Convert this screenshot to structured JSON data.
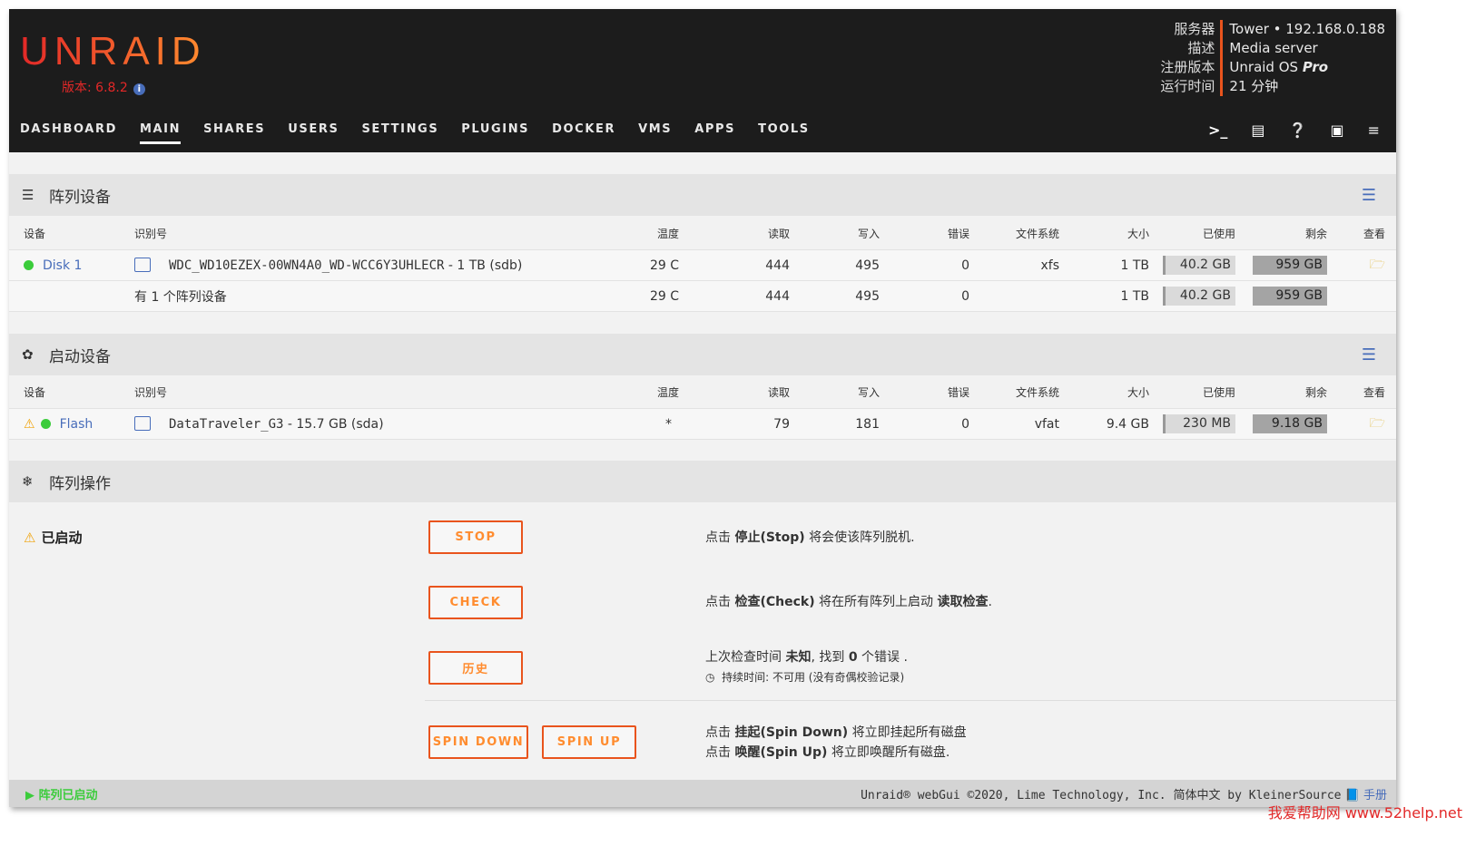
{
  "header": {
    "logo": "UNRAID",
    "version": "版本: 6.8.2",
    "server_info": {
      "labels": [
        "服务器",
        "描述",
        "注册版本",
        "运行时间"
      ],
      "server": "Tower • 192.168.0.188",
      "description": "Media server",
      "registration": "Unraid OS ",
      "registration_em": "Pro",
      "uptime": "21 分钟"
    }
  },
  "nav": {
    "items": [
      "DASHBOARD",
      "MAIN",
      "SHARES",
      "USERS",
      "SETTINGS",
      "PLUGINS",
      "DOCKER",
      "VMS",
      "APPS",
      "TOOLS"
    ],
    "active": "MAIN",
    "icons": [
      "terminal-icon",
      "feedback-icon",
      "help-icon",
      "monitor-icon",
      "log-icon"
    ]
  },
  "columns": [
    "设备",
    "识别号",
    "温度",
    "读取",
    "写入",
    "错误",
    "文件系统",
    "大小",
    "已使用",
    "剩余",
    "查看"
  ],
  "array": {
    "title": "阵列设备",
    "rows": [
      {
        "device": "Disk 1",
        "id": "WDC_WD10EZEX-00WN4A0_WD-WCC6Y3UHLECR",
        "id_suffix": " - 1 TB (sdb)",
        "temp": "29 C",
        "reads": "444",
        "writes": "495",
        "errors": "0",
        "fs": "xfs",
        "size": "1 TB",
        "used": "40.2 GB",
        "free": "959 GB",
        "status": "green"
      }
    ],
    "summary": {
      "label": "有 1 个阵列设备",
      "temp": "29 C",
      "reads": "444",
      "writes": "495",
      "errors": "0",
      "size": "1 TB",
      "used": "40.2 GB",
      "free": "959 GB"
    }
  },
  "boot": {
    "title": "启动设备",
    "rows": [
      {
        "device": "Flash",
        "id": "DataTraveler_G3",
        "id_suffix": " - 15.7 GB (sda)",
        "temp": "*",
        "reads": "79",
        "writes": "181",
        "errors": "0",
        "fs": "vfat",
        "size": "9.4 GB",
        "used": "230 MB",
        "free": "9.18 GB",
        "status": "green",
        "warning": true
      }
    ]
  },
  "ops": {
    "title": "阵列操作",
    "state": "已启动",
    "buttons": {
      "stop": "STOP",
      "check": "CHECK",
      "history": "历史",
      "spin_down": "SPIN DOWN",
      "spin_up": "SPIN UP"
    },
    "stop_desc": [
      "点击 ",
      "停止(Stop)",
      " 将会使该阵列脱机."
    ],
    "check_desc": [
      "点击 ",
      "检查(Check)",
      " 将在所有阵列上启动 ",
      "读取检查",
      "."
    ],
    "history_desc": [
      "上次检查时间 ",
      "未知",
      ", 找到 ",
      "0",
      " 个错误 ."
    ],
    "duration": "持续时间: 不可用 (没有奇偶校验记录)",
    "spin_down_desc": [
      "点击 ",
      "挂起(Spin Down)",
      " 将立即挂起所有磁盘"
    ],
    "spin_up_desc": [
      "点击 ",
      "唤醒(Spin Up)",
      " 将立即唤醒所有磁盘."
    ]
  },
  "footer": {
    "status": "阵列已启动",
    "copyright": "Unraid® webGui ©2020, Lime Technology, Inc. 简体中文 by KleinerSource",
    "manual": "手册"
  },
  "watermark": "我爱帮助网 www.52help.net",
  "colors": {
    "accent": "#e9541d",
    "link": "#486dba",
    "green": "#3bcc3b"
  }
}
